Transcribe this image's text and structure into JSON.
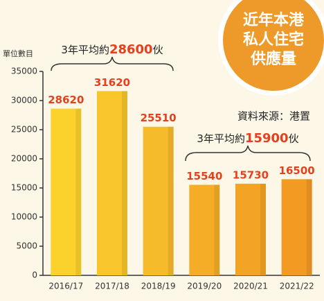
{
  "chart_data": {
    "type": "bar",
    "badge": [
      "近年本港",
      "私人住宅",
      "供應量"
    ],
    "source": "資料來源：港置",
    "y_label": "單位數目",
    "categories": [
      "2016/17",
      "2017/18",
      "2018/19",
      "2019/20",
      "2020/21",
      "2021/22"
    ],
    "values": [
      28620,
      31620,
      25510,
      15540,
      15730,
      16500
    ],
    "colors": [
      "#fbd22c",
      "#f8c62a",
      "#f6bb2a",
      "#f5ad27",
      "#f4a425",
      "#f39a22"
    ],
    "value_label_color": "#e5401e",
    "ylim": [
      0,
      35000
    ],
    "yticks": [
      0,
      5000,
      10000,
      15000,
      20000,
      25000,
      30000,
      35000
    ],
    "annotations": [
      {
        "prefix": "3年平均約",
        "value": 28600,
        "suffix": "伙"
      },
      {
        "prefix": "3年平均約",
        "value": 15900,
        "suffix": "伙"
      }
    ]
  }
}
